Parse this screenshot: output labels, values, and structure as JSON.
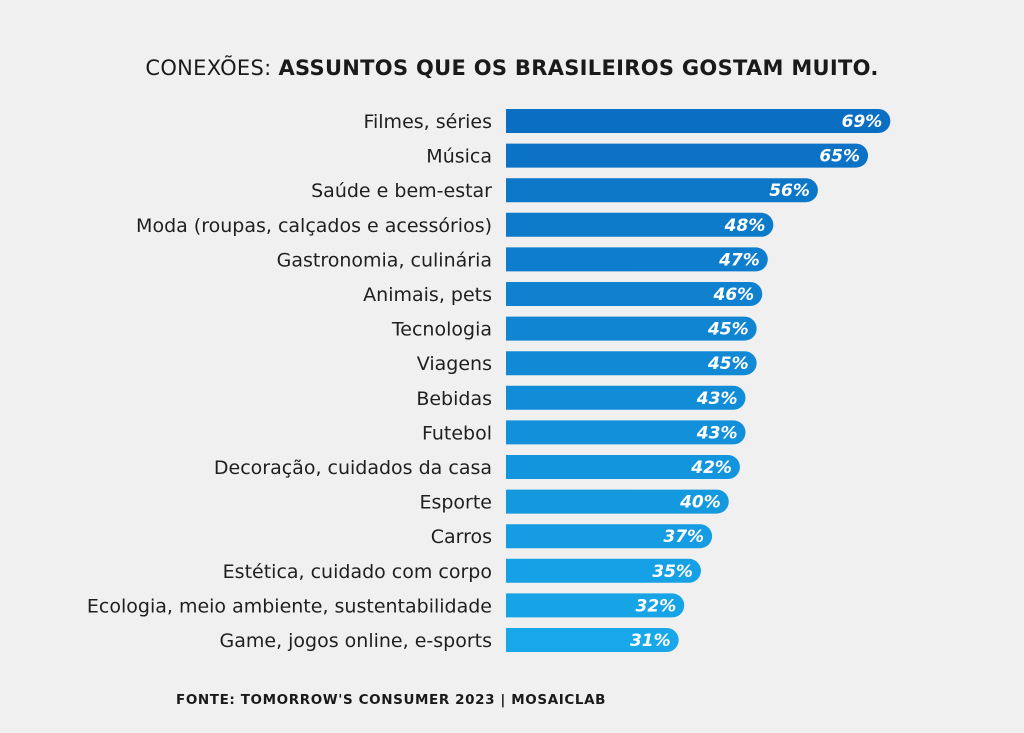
{
  "chart_data": {
    "type": "bar",
    "orientation": "horizontal",
    "title_prefix": "CONEXÕES:",
    "title": "ASSUNTOS QUE OS BRASILEIROS GOSTAM MUITO.",
    "categories": [
      "Filmes, séries",
      "Música",
      "Saúde e bem-estar",
      "Moda (roupas, calçados e acessórios)",
      "Gastronomia, culinária",
      "Animais, pets",
      "Tecnologia",
      "Viagens",
      "Bebidas",
      "Futebol",
      "Decoração, cuidados da casa",
      "Esporte",
      "Carros",
      "Estética, cuidado com corpo",
      "Ecologia, meio ambiente, sustentabilidade",
      "Game, jogos online, e-sports"
    ],
    "values": [
      69,
      65,
      56,
      48,
      47,
      46,
      45,
      45,
      43,
      43,
      42,
      40,
      37,
      35,
      32,
      31
    ],
    "value_labels": [
      "69%",
      "65%",
      "56%",
      "48%",
      "47%",
      "46%",
      "45%",
      "45%",
      "43%",
      "43%",
      "42%",
      "40%",
      "37%",
      "35%",
      "32%",
      "31%"
    ],
    "unit": "%",
    "colors": {
      "top": "#0A6EC2",
      "bottom": "#18A8EA"
    },
    "grid": false,
    "legend": "none"
  },
  "source": "FONTE: TOMORROW'S CONSUMER 2023 | MOSAICLAB"
}
